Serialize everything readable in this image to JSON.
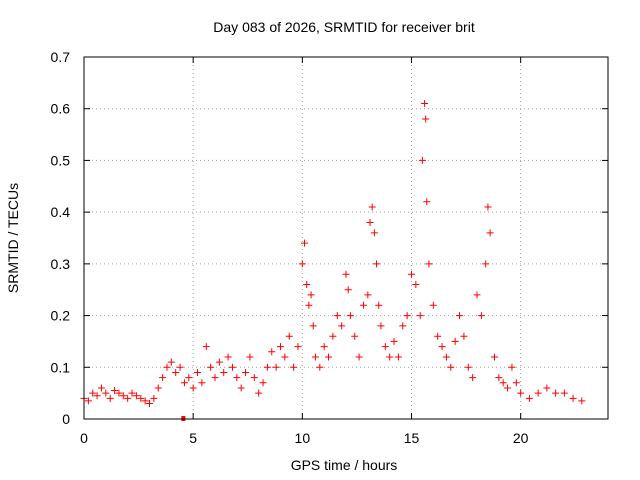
{
  "chart_data": {
    "type": "scatter",
    "title": "Day 083 of 2026, SRMTID for receiver brit",
    "xlabel": "GPS time / hours",
    "ylabel": "SRMTID / TECUs",
    "xlim": [
      0,
      24
    ],
    "ylim": [
      0,
      0.7
    ],
    "xticks": [
      0,
      5,
      10,
      15,
      20
    ],
    "yticks": [
      0,
      0.1,
      0.2,
      0.3,
      0.4,
      0.5,
      0.6,
      0.7
    ],
    "grid": true,
    "marker": "+",
    "series": [
      {
        "name": "SRMTID",
        "color": "#ff0000",
        "x": [
          0.0,
          0.2,
          0.4,
          0.6,
          0.8,
          1.0,
          1.2,
          1.4,
          1.6,
          1.8,
          2.0,
          2.2,
          2.4,
          2.6,
          2.8,
          3.0,
          3.2,
          3.4,
          3.6,
          3.8,
          4.0,
          4.2,
          4.4,
          4.6,
          4.8,
          5.0,
          5.2,
          5.4,
          5.6,
          5.8,
          6.0,
          6.2,
          6.4,
          6.6,
          6.8,
          7.0,
          7.2,
          7.4,
          7.6,
          7.8,
          8.0,
          8.2,
          8.4,
          8.6,
          8.8,
          9.0,
          9.2,
          9.4,
          9.6,
          9.8,
          10.0,
          10.1,
          10.2,
          10.3,
          10.4,
          10.5,
          10.6,
          10.8,
          11.0,
          11.2,
          11.4,
          11.6,
          11.8,
          12.0,
          12.1,
          12.2,
          12.4,
          12.6,
          12.8,
          13.0,
          13.1,
          13.2,
          13.3,
          13.4,
          13.5,
          13.6,
          13.8,
          14.0,
          14.2,
          14.4,
          14.6,
          14.8,
          15.0,
          15.2,
          15.4,
          15.5,
          15.6,
          15.65,
          15.7,
          15.8,
          16.0,
          16.2,
          16.4,
          16.6,
          16.8,
          17.0,
          17.2,
          17.4,
          17.6,
          17.8,
          18.0,
          18.2,
          18.4,
          18.5,
          18.6,
          18.8,
          19.0,
          19.2,
          19.4,
          19.6,
          19.8,
          20.0,
          20.4,
          20.8,
          21.2,
          21.6,
          22.0,
          22.4,
          22.8
        ],
        "y": [
          0.04,
          0.035,
          0.05,
          0.045,
          0.06,
          0.05,
          0.04,
          0.055,
          0.05,
          0.045,
          0.04,
          0.05,
          0.045,
          0.04,
          0.035,
          0.03,
          0.04,
          0.06,
          0.08,
          0.1,
          0.11,
          0.09,
          0.1,
          0.07,
          0.08,
          0.06,
          0.09,
          0.07,
          0.14,
          0.1,
          0.08,
          0.11,
          0.09,
          0.12,
          0.1,
          0.08,
          0.06,
          0.09,
          0.12,
          0.08,
          0.05,
          0.07,
          0.1,
          0.13,
          0.1,
          0.14,
          0.12,
          0.16,
          0.1,
          0.14,
          0.3,
          0.34,
          0.26,
          0.22,
          0.24,
          0.18,
          0.12,
          0.1,
          0.14,
          0.12,
          0.16,
          0.2,
          0.18,
          0.28,
          0.25,
          0.2,
          0.16,
          0.12,
          0.22,
          0.24,
          0.38,
          0.41,
          0.36,
          0.3,
          0.22,
          0.18,
          0.14,
          0.12,
          0.15,
          0.12,
          0.18,
          0.2,
          0.28,
          0.26,
          0.2,
          0.5,
          0.61,
          0.58,
          0.42,
          0.3,
          0.22,
          0.16,
          0.14,
          0.12,
          0.1,
          0.15,
          0.2,
          0.16,
          0.1,
          0.08,
          0.24,
          0.2,
          0.3,
          0.41,
          0.36,
          0.12,
          0.08,
          0.07,
          0.06,
          0.1,
          0.07,
          0.05,
          0.04,
          0.05,
          0.06,
          0.05,
          0.05,
          0.04,
          0.035
        ],
        "min_marker": {
          "x": 4.55,
          "y": 0
        }
      }
    ]
  }
}
